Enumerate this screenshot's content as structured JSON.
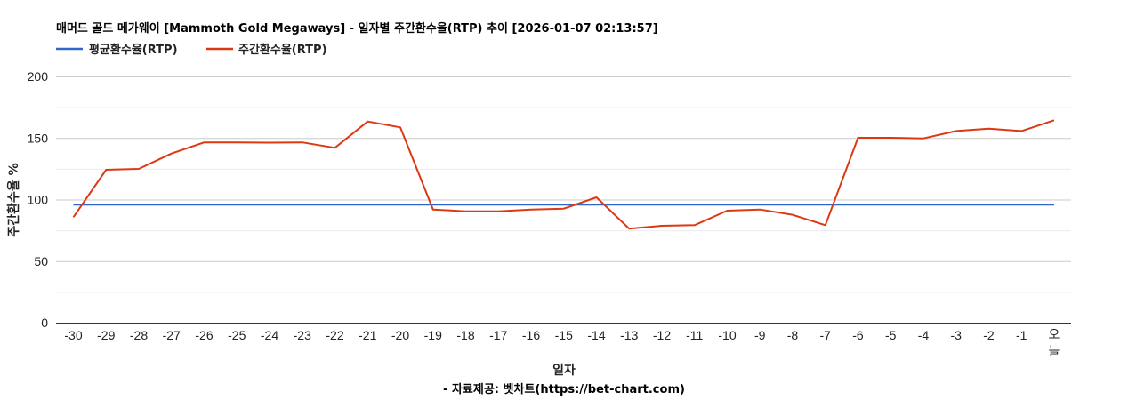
{
  "chart_data": {
    "type": "line",
    "title": "매머드 골드 메가웨이 [Mammoth Gold Megaways] - 일자별 주간환수율(RTP) 추이 [2026-01-07 02:13:57]",
    "xlabel": "일자",
    "ylabel": "주간환수율 %",
    "credit": "- 자료제공: 벳차트(https://bet-chart.com)",
    "ylim": [
      0,
      200
    ],
    "yticks": [
      0,
      50,
      100,
      150,
      200
    ],
    "minor_gridlines": [
      25,
      75,
      125,
      175
    ],
    "grid": true,
    "legend_position": "top",
    "categories": [
      "-30",
      "-29",
      "-28",
      "-27",
      "-26",
      "-25",
      "-24",
      "-23",
      "-22",
      "-21",
      "-20",
      "-19",
      "-18",
      "-17",
      "-16",
      "-15",
      "-14",
      "-13",
      "-12",
      "-11",
      "-10",
      "-9",
      "-8",
      "-7",
      "-6",
      "-5",
      "-4",
      "-3",
      "-2",
      "-1",
      "오늘"
    ],
    "series": [
      {
        "name": "평균환수율(RTP)",
        "color": "#3366cc",
        "values": [
          95.8,
          95.8,
          95.8,
          95.8,
          95.8,
          95.8,
          95.8,
          95.8,
          95.8,
          95.8,
          95.8,
          95.8,
          95.8,
          95.8,
          95.8,
          95.8,
          95.8,
          95.8,
          95.8,
          95.8,
          95.8,
          95.8,
          95.8,
          95.8,
          95.8,
          95.8,
          95.8,
          95.8,
          95.8,
          95.8,
          95.8
        ]
      },
      {
        "name": "주간환수율(RTP)",
        "color": "#dc3912",
        "values": [
          85.7,
          124.2,
          124.9,
          137.4,
          146.4,
          146.4,
          146.2,
          146.4,
          142.0,
          163.4,
          158.6,
          91.9,
          90.5,
          90.5,
          91.9,
          92.6,
          101.8,
          76.3,
          78.7,
          79.2,
          91.0,
          91.9,
          87.6,
          79.2,
          150.2,
          150.2,
          149.7,
          155.7,
          157.6,
          155.7,
          164.4
        ]
      }
    ]
  }
}
